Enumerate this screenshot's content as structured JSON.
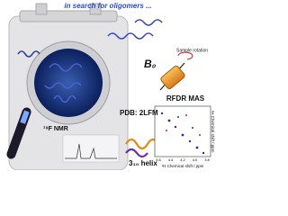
{
  "header": {
    "title": "in search for oligomers ..."
  },
  "labels": {
    "field": "B₀",
    "rotation": "Sample rotation",
    "method": "RFDR MAS",
    "nmr": "¹⁹F NMR",
    "pdb": "PDB: 2LFM",
    "helix": "3₁₀ helix"
  },
  "spectrum": {
    "x_label": "¹H Chemical shift / ppm",
    "y_label": "¹H Chemical shift / ppm",
    "x_ticks": [
      "4.6",
      "4.4",
      "4.2",
      "4.0",
      "3.8"
    ]
  }
}
